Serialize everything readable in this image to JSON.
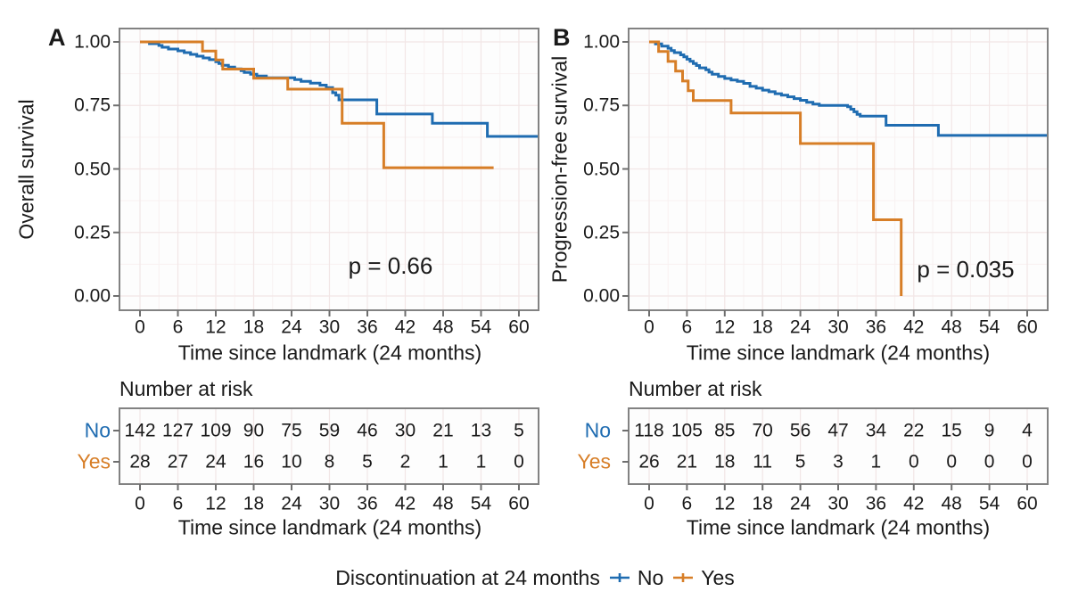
{
  "figure": {
    "legend": {
      "title": "Discontinuation at 24 months",
      "position": "bottom",
      "items": [
        {
          "label": "No",
          "color": "#1f6cb1"
        },
        {
          "label": "Yes",
          "color": "#d77e27"
        }
      ]
    }
  },
  "chart_data": [
    {
      "id": "A",
      "type": "line",
      "subtype": "kaplan-meier-step",
      "panel_label": "A",
      "ylabel": "Overall survival",
      "xlabel": "Time since landmark (24 months)",
      "pvalue": "p = 0.66",
      "grid": true,
      "xticks": [
        0,
        6,
        12,
        18,
        24,
        30,
        36,
        42,
        48,
        54,
        60
      ],
      "yticks": [
        "1.00",
        "0.75",
        "0.50",
        "0.25",
        "0.00"
      ],
      "xlim": [
        -3.3,
        63.1
      ],
      "ylim": [
        0,
        1
      ],
      "series": [
        {
          "name": "No",
          "color": "#1f6cb1",
          "points": [
            [
              0,
              1.0
            ],
            [
              1.5,
              0.993
            ],
            [
              3,
              0.986
            ],
            [
              3.5,
              0.979
            ],
            [
              4.5,
              0.972
            ],
            [
              6,
              0.965
            ],
            [
              7,
              0.958
            ],
            [
              8,
              0.951
            ],
            [
              9,
              0.944
            ],
            [
              10,
              0.937
            ],
            [
              11,
              0.93
            ],
            [
              12,
              0.922
            ],
            [
              12.5,
              0.915
            ],
            [
              13,
              0.908
            ],
            [
              14,
              0.901
            ],
            [
              15,
              0.894
            ],
            [
              16,
              0.887
            ],
            [
              16.5,
              0.88
            ],
            [
              17.5,
              0.873
            ],
            [
              18.5,
              0.866
            ],
            [
              20,
              0.859
            ],
            [
              24.5,
              0.852
            ],
            [
              25.5,
              0.845
            ],
            [
              27,
              0.838
            ],
            [
              28.5,
              0.83
            ],
            [
              29.5,
              0.82
            ],
            [
              30.5,
              0.8
            ],
            [
              31,
              0.79
            ],
            [
              31.5,
              0.772
            ],
            [
              37.5,
              0.716
            ],
            [
              46.3,
              0.68
            ],
            [
              55,
              0.628
            ]
          ],
          "end_t": 63.0
        },
        {
          "name": "Yes",
          "color": "#d77e27",
          "points": [
            [
              0,
              1.0
            ],
            [
              9.9,
              0.964
            ],
            [
              12,
              0.929
            ],
            [
              13.1,
              0.893
            ],
            [
              18,
              0.857
            ],
            [
              23.4,
              0.814
            ],
            [
              32,
              0.68
            ],
            [
              38.6,
              0.505
            ]
          ],
          "end_t": 56.0
        }
      ],
      "risk_table": {
        "title": "Number at risk",
        "rows": [
          {
            "name": "No",
            "color": "#1f6cb1",
            "values": [
              142,
              127,
              109,
              90,
              75,
              59,
              46,
              30,
              21,
              13,
              5
            ]
          },
          {
            "name": "Yes",
            "color": "#d77e27",
            "values": [
              28,
              27,
              24,
              16,
              10,
              8,
              5,
              2,
              1,
              1,
              0
            ]
          }
        ]
      }
    },
    {
      "id": "B",
      "type": "line",
      "subtype": "kaplan-meier-step",
      "panel_label": "B",
      "ylabel": "Progression-free survival",
      "xlabel": "Time since landmark (24 months)",
      "pvalue": "p = 0.035",
      "grid": true,
      "xticks": [
        0,
        6,
        12,
        18,
        24,
        30,
        36,
        42,
        48,
        54,
        60
      ],
      "yticks": [
        "1.00",
        "0.75",
        "0.50",
        "0.25",
        "0.00"
      ],
      "xlim": [
        -3.3,
        63.3
      ],
      "ylim": [
        0,
        1
      ],
      "series": [
        {
          "name": "No",
          "color": "#1f6cb1",
          "points": [
            [
              0,
              1.0
            ],
            [
              1,
              0.992
            ],
            [
              2,
              0.983
            ],
            [
              3,
              0.975
            ],
            [
              3.5,
              0.966
            ],
            [
              4,
              0.958
            ],
            [
              5,
              0.949
            ],
            [
              5.5,
              0.941
            ],
            [
              6,
              0.932
            ],
            [
              6.5,
              0.924
            ],
            [
              7,
              0.915
            ],
            [
              7.5,
              0.907
            ],
            [
              8,
              0.898
            ],
            [
              9,
              0.89
            ],
            [
              9.5,
              0.881
            ],
            [
              10,
              0.873
            ],
            [
              11,
              0.864
            ],
            [
              12,
              0.856
            ],
            [
              13,
              0.85
            ],
            [
              14,
              0.845
            ],
            [
              15,
              0.837
            ],
            [
              16,
              0.825
            ],
            [
              17,
              0.818
            ],
            [
              18,
              0.81
            ],
            [
              19,
              0.804
            ],
            [
              20,
              0.796
            ],
            [
              21,
              0.79
            ],
            [
              22,
              0.784
            ],
            [
              23,
              0.777
            ],
            [
              24,
              0.77
            ],
            [
              25,
              0.762
            ],
            [
              26,
              0.755
            ],
            [
              27,
              0.75
            ],
            [
              31.5,
              0.745
            ],
            [
              32,
              0.735
            ],
            [
              32.5,
              0.725
            ],
            [
              33,
              0.715
            ],
            [
              33.5,
              0.708
            ],
            [
              37.6,
              0.672
            ],
            [
              45.9,
              0.632
            ]
          ],
          "end_t": 63.2
        },
        {
          "name": "Yes",
          "color": "#d77e27",
          "points": [
            [
              0,
              1.0
            ],
            [
              1.5,
              0.962
            ],
            [
              3,
              0.923
            ],
            [
              4.2,
              0.885
            ],
            [
              5.3,
              0.846
            ],
            [
              6.2,
              0.808
            ],
            [
              7,
              0.769
            ],
            [
              13,
              0.72
            ],
            [
              24,
              0.6
            ],
            [
              35.6,
              0.3
            ],
            [
              40,
              0.0
            ]
          ],
          "end_t": 40.0
        }
      ],
      "risk_table": {
        "title": "Number at risk",
        "rows": [
          {
            "name": "No",
            "color": "#1f6cb1",
            "values": [
              118,
              105,
              85,
              70,
              56,
              47,
              34,
              22,
              15,
              9,
              4
            ]
          },
          {
            "name": "Yes",
            "color": "#d77e27",
            "values": [
              26,
              21,
              18,
              11,
              5,
              3,
              1,
              0,
              0,
              0,
              0
            ]
          }
        ]
      }
    }
  ]
}
